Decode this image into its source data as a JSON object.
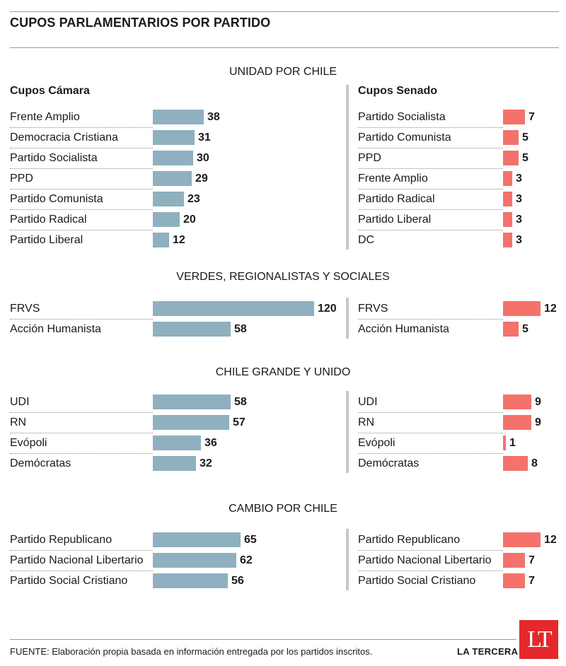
{
  "title": "CUPOS PARLAMENTARIOS POR PARTIDO",
  "chart_data": [
    {
      "type": "bar",
      "title": "UNIDAD POR CHILE",
      "camara_label": "Cupos Cámara",
      "senado_label": "Cupos Senado",
      "camara": [
        {
          "party": "Frente Amplio",
          "value": 38
        },
        {
          "party": "Democracia Cristiana",
          "value": 31
        },
        {
          "party": "Partido Socialista",
          "value": 30
        },
        {
          "party": "PPD",
          "value": 29
        },
        {
          "party": "Partido Comunista",
          "value": 23
        },
        {
          "party": "Partido Radical",
          "value": 20
        },
        {
          "party": "Partido Liberal",
          "value": 12
        }
      ],
      "senado": [
        {
          "party": "Partido Socialista",
          "value": 7
        },
        {
          "party": "Partido Comunista",
          "value": 5
        },
        {
          "party": "PPD",
          "value": 5
        },
        {
          "party": "Frente Amplio",
          "value": 3
        },
        {
          "party": "Partido Radical",
          "value": 3
        },
        {
          "party": "Partido Liberal",
          "value": 3
        },
        {
          "party": "DC",
          "value": 3
        }
      ]
    },
    {
      "type": "bar",
      "title": "VERDES, REGIONALISTAS Y SOCIALES",
      "camara": [
        {
          "party": "FRVS",
          "value": 120
        },
        {
          "party": "Acción Humanista",
          "value": 58
        }
      ],
      "senado": [
        {
          "party": "FRVS",
          "value": 12
        },
        {
          "party": "Acción Humanista",
          "value": 5
        }
      ]
    },
    {
      "type": "bar",
      "title": "CHILE GRANDE Y UNIDO",
      "camara": [
        {
          "party": "UDI",
          "value": 58
        },
        {
          "party": "RN",
          "value": 57
        },
        {
          "party": "Evópoli",
          "value": 36
        },
        {
          "party": "Demócratas",
          "value": 32
        }
      ],
      "senado": [
        {
          "party": "UDI",
          "value": 9
        },
        {
          "party": "RN",
          "value": 9
        },
        {
          "party": "Evópoli",
          "value": 1
        },
        {
          "party": "Demócratas",
          "value": 8
        }
      ]
    },
    {
      "type": "bar",
      "title": "CAMBIO POR CHILE",
      "camara": [
        {
          "party": "Partido Republicano",
          "value": 65
        },
        {
          "party": "Partido Nacional Libertario",
          "value": 62
        },
        {
          "party": "Partido Social Cristiano",
          "value": 56
        }
      ],
      "senado": [
        {
          "party": "Partido Republicano",
          "value": 12
        },
        {
          "party": "Partido Nacional Libertario",
          "value": 7
        },
        {
          "party": "Partido Social Cristiano",
          "value": 7
        }
      ]
    }
  ],
  "colors": {
    "camara_bar": "#8fb0bf",
    "senado_bar": "#f4726b",
    "logo": "#e4282b"
  },
  "footer": {
    "source": "FUENTE: Elaboración propia basada en información entregada por los partidos inscritos.",
    "brand": "LA TERCERA",
    "logo_text": "LT"
  }
}
